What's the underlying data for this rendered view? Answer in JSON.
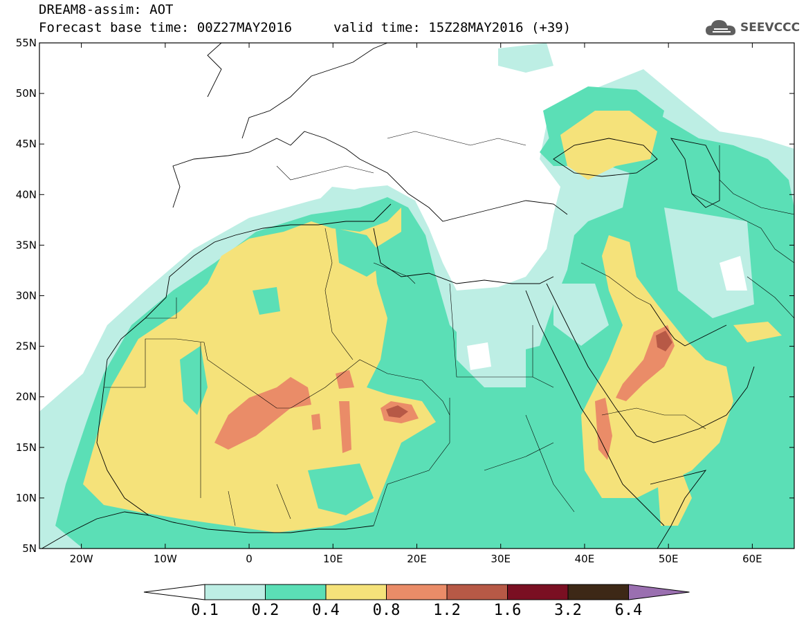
{
  "header": {
    "title": "DREAM8-assim: AOT",
    "forecast_base": "Forecast base time: 00Z27MAY2016",
    "valid_time": "valid time: 15Z28MAY2016 (+39)",
    "logo_text": "SEEVCCC"
  },
  "map": {
    "lon_range": [
      -25,
      65
    ],
    "lat_range": [
      5,
      55
    ],
    "x_ticks": [
      {
        "lon": -20,
        "label": "20W"
      },
      {
        "lon": -10,
        "label": "10W"
      },
      {
        "lon": 0,
        "label": "0"
      },
      {
        "lon": 10,
        "label": "10E"
      },
      {
        "lon": 20,
        "label": "20E"
      },
      {
        "lon": 30,
        "label": "30E"
      },
      {
        "lon": 40,
        "label": "40E"
      },
      {
        "lon": 50,
        "label": "50E"
      },
      {
        "lon": 60,
        "label": "60E"
      }
    ],
    "y_ticks": [
      {
        "lat": 55,
        "label": "55N"
      },
      {
        "lat": 50,
        "label": "50N"
      },
      {
        "lat": 45,
        "label": "45N"
      },
      {
        "lat": 40,
        "label": "40N"
      },
      {
        "lat": 35,
        "label": "35N"
      },
      {
        "lat": 30,
        "label": "30N"
      },
      {
        "lat": 25,
        "label": "25N"
      },
      {
        "lat": 20,
        "label": "20N"
      },
      {
        "lat": 15,
        "label": "15N"
      },
      {
        "lat": 10,
        "label": "10N"
      },
      {
        "lat": 5,
        "label": "5N"
      }
    ]
  },
  "colorbar": {
    "levels": [
      "0.1",
      "0.2",
      "0.4",
      "0.8",
      "1.2",
      "1.6",
      "3.2",
      "6.4"
    ],
    "colors": [
      "#bdeee4",
      "#5bdfb6",
      "#f5e27a",
      "#ea8c68",
      "#b75946",
      "#7a0f22",
      "#3d2816"
    ],
    "under_color": "#ffffff",
    "over_color": "#9a6fb0"
  }
}
